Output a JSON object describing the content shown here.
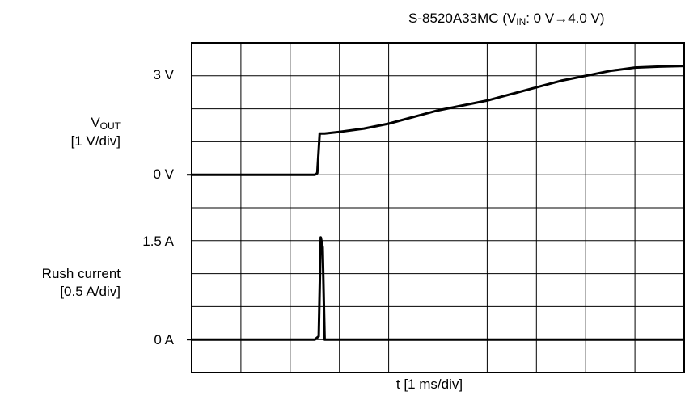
{
  "chart_data": {
    "type": "line",
    "title": {
      "prefix": "S-8520A33MC (V",
      "sub": "IN",
      "suffix": ": 0 V→4.0 V)"
    },
    "xlabel": "t [1 ms/div]",
    "x_units": "ms",
    "xlim": [
      0,
      10
    ],
    "grid": true,
    "divisions": {
      "x": 10,
      "y": 10
    },
    "tick_labels": {
      "vout_3v": "3 V",
      "vout_0v": "0 V",
      "current_1_5a": "1.5 A",
      "current_0a": "0 A"
    },
    "channel_labels": {
      "vout": {
        "main": "V",
        "sub": "OUT",
        "scale": "[1 V/div]"
      },
      "current": {
        "main": "Rush current",
        "scale": "[0.5 A/div]"
      }
    },
    "series": [
      {
        "name": "VOUT",
        "unit": "V",
        "x": [
          0.0,
          2.5,
          2.55,
          2.6,
          2.7,
          3.0,
          3.5,
          4.0,
          4.5,
          5.0,
          5.5,
          6.0,
          6.5,
          7.0,
          7.5,
          8.0,
          8.5,
          9.0,
          9.5,
          10.0
        ],
        "values": [
          0.0,
          0.0,
          0.05,
          1.25,
          1.25,
          1.3,
          1.4,
          1.55,
          1.75,
          1.95,
          2.1,
          2.25,
          2.45,
          2.65,
          2.85,
          3.0,
          3.15,
          3.25,
          3.28,
          3.3
        ]
      },
      {
        "name": "Rush current",
        "unit": "A",
        "x": [
          0.0,
          2.5,
          2.58,
          2.62,
          2.66,
          2.7,
          10.0
        ],
        "values": [
          0.0,
          0.0,
          0.05,
          1.55,
          1.4,
          0.0,
          0.0
        ]
      }
    ]
  }
}
